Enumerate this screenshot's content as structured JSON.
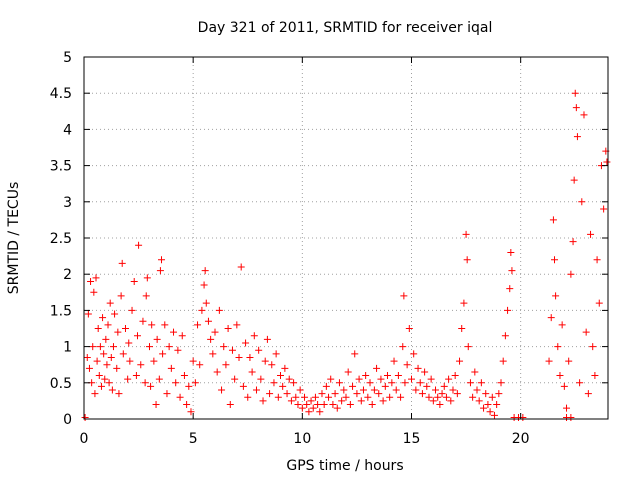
{
  "chart_data": {
    "type": "scatter",
    "title": "Day 321 of 2011, SRMTID for receiver iqal",
    "xlabel": "GPS time / hours",
    "ylabel": "SRMTID / TECUs",
    "xlim": [
      0,
      24
    ],
    "ylim": [
      0,
      5
    ],
    "x_ticks": [
      "0",
      "5",
      "10",
      "15",
      "20"
    ],
    "y_ticks": [
      "0",
      "0.5",
      "1",
      "1.5",
      "2",
      "2.5",
      "3",
      "3.5",
      "4",
      "4.5",
      "5"
    ],
    "grid": true,
    "marker": "plus",
    "color": "#ff0000",
    "points": [
      [
        0.05,
        0.02
      ],
      [
        0.15,
        0.85
      ],
      [
        0.2,
        1.45
      ],
      [
        0.25,
        0.7
      ],
      [
        0.3,
        1.9
      ],
      [
        0.35,
        0.5
      ],
      [
        0.4,
        1.0
      ],
      [
        0.45,
        1.75
      ],
      [
        0.5,
        0.35
      ],
      [
        0.55,
        1.95
      ],
      [
        0.6,
        0.8
      ],
      [
        0.65,
        1.25
      ],
      [
        0.7,
        0.6
      ],
      [
        0.75,
        1.0
      ],
      [
        0.8,
        0.45
      ],
      [
        0.85,
        1.4
      ],
      [
        0.9,
        0.9
      ],
      [
        0.95,
        0.55
      ],
      [
        1.0,
        1.1
      ],
      [
        1.05,
        0.75
      ],
      [
        1.1,
        1.3
      ],
      [
        1.15,
        0.5
      ],
      [
        1.2,
        1.6
      ],
      [
        1.25,
        0.85
      ],
      [
        1.3,
        0.4
      ],
      [
        1.35,
        1.0
      ],
      [
        1.4,
        1.45
      ],
      [
        1.5,
        0.7
      ],
      [
        1.55,
        1.2
      ],
      [
        1.6,
        0.35
      ],
      [
        1.7,
        1.7
      ],
      [
        1.75,
        2.15
      ],
      [
        1.8,
        0.9
      ],
      [
        1.9,
        1.25
      ],
      [
        2.0,
        0.55
      ],
      [
        2.05,
        1.05
      ],
      [
        2.1,
        0.8
      ],
      [
        2.2,
        1.5
      ],
      [
        2.3,
        1.9
      ],
      [
        2.4,
        0.6
      ],
      [
        2.45,
        1.15
      ],
      [
        2.5,
        2.4
      ],
      [
        2.6,
        0.75
      ],
      [
        2.7,
        1.35
      ],
      [
        2.8,
        0.5
      ],
      [
        2.85,
        1.7
      ],
      [
        2.9,
        1.95
      ],
      [
        3.0,
        1.0
      ],
      [
        3.05,
        0.45
      ],
      [
        3.1,
        1.3
      ],
      [
        3.2,
        0.8
      ],
      [
        3.3,
        0.2
      ],
      [
        3.35,
        1.1
      ],
      [
        3.45,
        0.55
      ],
      [
        3.5,
        2.05
      ],
      [
        3.55,
        2.2
      ],
      [
        3.6,
        0.9
      ],
      [
        3.7,
        1.3
      ],
      [
        3.8,
        0.35
      ],
      [
        3.9,
        1.0
      ],
      [
        4.0,
        0.7
      ],
      [
        4.1,
        1.2
      ],
      [
        4.2,
        0.5
      ],
      [
        4.3,
        0.95
      ],
      [
        4.4,
        0.3
      ],
      [
        4.5,
        1.15
      ],
      [
        4.6,
        0.6
      ],
      [
        4.7,
        0.2
      ],
      [
        4.8,
        0.45
      ],
      [
        4.9,
        0.1
      ],
      [
        5.0,
        0.8
      ],
      [
        5.1,
        0.5
      ],
      [
        5.2,
        1.3
      ],
      [
        5.3,
        0.75
      ],
      [
        5.4,
        1.5
      ],
      [
        5.5,
        1.85
      ],
      [
        5.55,
        2.05
      ],
      [
        5.6,
        1.6
      ],
      [
        5.7,
        1.35
      ],
      [
        5.8,
        1.1
      ],
      [
        5.9,
        0.9
      ],
      [
        6.0,
        1.2
      ],
      [
        6.1,
        0.65
      ],
      [
        6.2,
        1.5
      ],
      [
        6.3,
        0.4
      ],
      [
        6.4,
        1.0
      ],
      [
        6.5,
        0.75
      ],
      [
        6.6,
        1.25
      ],
      [
        6.7,
        0.2
      ],
      [
        6.8,
        0.95
      ],
      [
        6.9,
        0.55
      ],
      [
        7.0,
        1.3
      ],
      [
        7.1,
        0.85
      ],
      [
        7.2,
        2.1
      ],
      [
        7.3,
        0.45
      ],
      [
        7.4,
        1.05
      ],
      [
        7.5,
        0.3
      ],
      [
        7.6,
        0.85
      ],
      [
        7.7,
        0.65
      ],
      [
        7.8,
        1.15
      ],
      [
        7.9,
        0.4
      ],
      [
        8.0,
        0.95
      ],
      [
        8.1,
        0.55
      ],
      [
        8.2,
        0.25
      ],
      [
        8.3,
        0.8
      ],
      [
        8.4,
        1.1
      ],
      [
        8.5,
        0.35
      ],
      [
        8.6,
        0.75
      ],
      [
        8.7,
        0.5
      ],
      [
        8.8,
        0.9
      ],
      [
        8.9,
        0.3
      ],
      [
        9.0,
        0.6
      ],
      [
        9.1,
        0.45
      ],
      [
        9.2,
        0.7
      ],
      [
        9.3,
        0.35
      ],
      [
        9.4,
        0.55
      ],
      [
        9.5,
        0.25
      ],
      [
        9.6,
        0.5
      ],
      [
        9.7,
        0.3
      ],
      [
        9.8,
        0.2
      ],
      [
        9.9,
        0.4
      ],
      [
        10.0,
        0.15
      ],
      [
        10.1,
        0.3
      ],
      [
        10.2,
        0.2
      ],
      [
        10.3,
        0.1
      ],
      [
        10.4,
        0.25
      ],
      [
        10.5,
        0.15
      ],
      [
        10.6,
        0.3
      ],
      [
        10.7,
        0.2
      ],
      [
        10.8,
        0.1
      ],
      [
        10.9,
        0.35
      ],
      [
        11.0,
        0.2
      ],
      [
        11.1,
        0.45
      ],
      [
        11.2,
        0.3
      ],
      [
        11.3,
        0.55
      ],
      [
        11.4,
        0.2
      ],
      [
        11.5,
        0.35
      ],
      [
        11.6,
        0.15
      ],
      [
        11.7,
        0.5
      ],
      [
        11.8,
        0.25
      ],
      [
        11.9,
        0.4
      ],
      [
        12.0,
        0.3
      ],
      [
        12.1,
        0.65
      ],
      [
        12.2,
        0.2
      ],
      [
        12.3,
        0.45
      ],
      [
        12.4,
        0.9
      ],
      [
        12.5,
        0.35
      ],
      [
        12.6,
        0.55
      ],
      [
        12.7,
        0.25
      ],
      [
        12.8,
        0.4
      ],
      [
        12.9,
        0.6
      ],
      [
        13.0,
        0.3
      ],
      [
        13.1,
        0.5
      ],
      [
        13.2,
        0.2
      ],
      [
        13.3,
        0.4
      ],
      [
        13.4,
        0.7
      ],
      [
        13.5,
        0.35
      ],
      [
        13.6,
        0.55
      ],
      [
        13.7,
        0.25
      ],
      [
        13.8,
        0.45
      ],
      [
        13.9,
        0.6
      ],
      [
        14.0,
        0.3
      ],
      [
        14.1,
        0.5
      ],
      [
        14.2,
        0.8
      ],
      [
        14.3,
        0.4
      ],
      [
        14.4,
        0.6
      ],
      [
        14.5,
        0.3
      ],
      [
        14.6,
        1.0
      ],
      [
        14.65,
        1.7
      ],
      [
        14.7,
        0.5
      ],
      [
        14.8,
        0.75
      ],
      [
        14.9,
        1.25
      ],
      [
        15.0,
        0.55
      ],
      [
        15.1,
        0.9
      ],
      [
        15.2,
        0.4
      ],
      [
        15.3,
        0.7
      ],
      [
        15.4,
        0.5
      ],
      [
        15.5,
        0.35
      ],
      [
        15.6,
        0.65
      ],
      [
        15.7,
        0.45
      ],
      [
        15.8,
        0.3
      ],
      [
        15.9,
        0.55
      ],
      [
        16.0,
        0.25
      ],
      [
        16.1,
        0.4
      ],
      [
        16.2,
        0.3
      ],
      [
        16.3,
        0.2
      ],
      [
        16.4,
        0.35
      ],
      [
        16.5,
        0.45
      ],
      [
        16.6,
        0.3
      ],
      [
        16.7,
        0.55
      ],
      [
        16.8,
        0.25
      ],
      [
        16.9,
        0.4
      ],
      [
        17.0,
        0.6
      ],
      [
        17.1,
        0.35
      ],
      [
        17.2,
        0.8
      ],
      [
        17.3,
        1.25
      ],
      [
        17.4,
        1.6
      ],
      [
        17.5,
        2.55
      ],
      [
        17.55,
        2.2
      ],
      [
        17.6,
        1.0
      ],
      [
        17.7,
        0.5
      ],
      [
        17.8,
        0.3
      ],
      [
        17.9,
        0.65
      ],
      [
        18.0,
        0.4
      ],
      [
        18.1,
        0.25
      ],
      [
        18.2,
        0.5
      ],
      [
        18.3,
        0.15
      ],
      [
        18.4,
        0.35
      ],
      [
        18.5,
        0.2
      ],
      [
        18.6,
        0.1
      ],
      [
        18.7,
        0.3
      ],
      [
        18.8,
        0.05
      ],
      [
        18.9,
        0.2
      ],
      [
        19.0,
        0.35
      ],
      [
        19.1,
        0.5
      ],
      [
        19.2,
        0.8
      ],
      [
        19.3,
        1.15
      ],
      [
        19.4,
        1.5
      ],
      [
        19.5,
        1.8
      ],
      [
        19.55,
        2.3
      ],
      [
        19.6,
        2.05
      ],
      [
        19.7,
        0.02
      ],
      [
        19.9,
        0.02
      ],
      [
        20.1,
        0.02
      ],
      [
        21.3,
        0.8
      ],
      [
        21.4,
        1.4
      ],
      [
        21.5,
        2.75
      ],
      [
        21.55,
        2.2
      ],
      [
        21.6,
        1.7
      ],
      [
        21.7,
        1.0
      ],
      [
        21.8,
        0.6
      ],
      [
        21.9,
        1.3
      ],
      [
        22.0,
        0.45
      ],
      [
        22.1,
        0.15
      ],
      [
        22.2,
        0.8
      ],
      [
        22.3,
        2.0
      ],
      [
        22.4,
        2.45
      ],
      [
        22.45,
        3.3
      ],
      [
        22.5,
        4.5
      ],
      [
        22.55,
        4.3
      ],
      [
        22.6,
        3.9
      ],
      [
        22.7,
        0.5
      ],
      [
        22.8,
        3.0
      ],
      [
        22.9,
        4.2
      ],
      [
        23.0,
        1.2
      ],
      [
        23.1,
        0.35
      ],
      [
        23.2,
        2.55
      ],
      [
        23.3,
        1.0
      ],
      [
        23.4,
        0.6
      ],
      [
        23.5,
        2.2
      ],
      [
        23.6,
        1.6
      ],
      [
        23.7,
        3.5
      ],
      [
        23.8,
        2.9
      ],
      [
        23.9,
        3.7
      ],
      [
        23.95,
        3.55
      ],
      [
        22.1,
        0.02
      ],
      [
        22.3,
        0.02
      ]
    ]
  }
}
